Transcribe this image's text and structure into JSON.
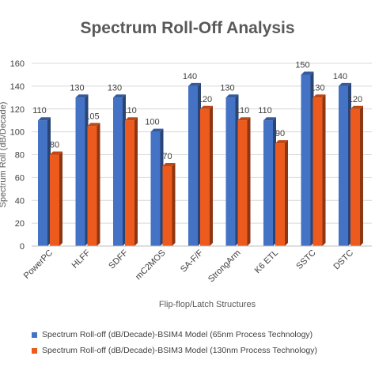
{
  "chart_data": {
    "type": "bar",
    "title": "Spectrum Roll-Off Analysis",
    "xlabel": "Flip-flop/Latch Structures",
    "ylabel": "Spectrum Roll (dB/Decade)",
    "ylim": [
      0,
      160
    ],
    "yticks": [
      0,
      20,
      40,
      60,
      80,
      100,
      120,
      140,
      160
    ],
    "grid": true,
    "legend_position": "bottom",
    "categories": [
      "PowerPC",
      "HLFF",
      "SDFF",
      "mC2MOS",
      "SA-F/F",
      "StrongArm",
      "K6 ETL",
      "SSTC",
      "DSTC"
    ],
    "series": [
      {
        "name": "Spectrum Roll-off (dB/Decade)-BSIM4 Model (65nm Process Technology)",
        "color": "#4472C4",
        "values": [
          110,
          130,
          130,
          100,
          140,
          130,
          110,
          150,
          140
        ]
      },
      {
        "name": "Spectrum Roll-off (dB/Decade)-BSIM3 Model (130nm Process Technology)",
        "color": "#ED5A1E",
        "values": [
          80,
          105,
          110,
          70,
          120,
          110,
          90,
          130,
          120
        ]
      }
    ]
  }
}
